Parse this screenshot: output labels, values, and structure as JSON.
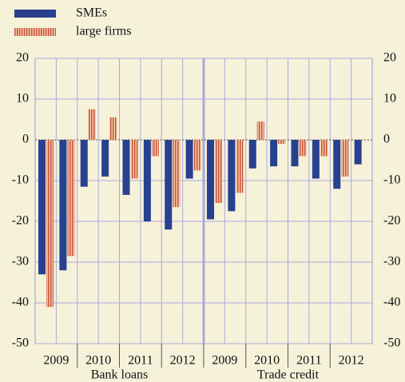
{
  "chart_data": {
    "type": "bar",
    "categories": [
      "2009",
      null,
      "2010",
      null,
      "2011",
      null,
      "2012",
      null,
      "2009",
      null,
      "2010",
      null,
      "2011",
      null,
      "2012",
      null
    ],
    "panels": [
      "Bank loans",
      "Trade credit"
    ],
    "series": [
      {
        "name": "SMEs",
        "color": "#27408f",
        "values": [
          -33,
          -32,
          -11.5,
          -9,
          -13.5,
          -20,
          -22,
          -9.5,
          -19.5,
          -17.5,
          -7,
          -6.5,
          -6.5,
          -9.5,
          -12,
          -6
        ]
      },
      {
        "name": "large firms",
        "color": "#c8553d",
        "values": [
          -41,
          -28.5,
          7.5,
          5.5,
          -9.5,
          -4,
          -16.5,
          -7.5,
          -15.5,
          -13,
          4.5,
          -1,
          -4,
          -4,
          -9,
          null
        ]
      }
    ],
    "ylim": [
      -50,
      20
    ],
    "yticks": [
      -50,
      -40,
      -30,
      -20,
      -10,
      0,
      10,
      20
    ],
    "grid": true
  }
}
